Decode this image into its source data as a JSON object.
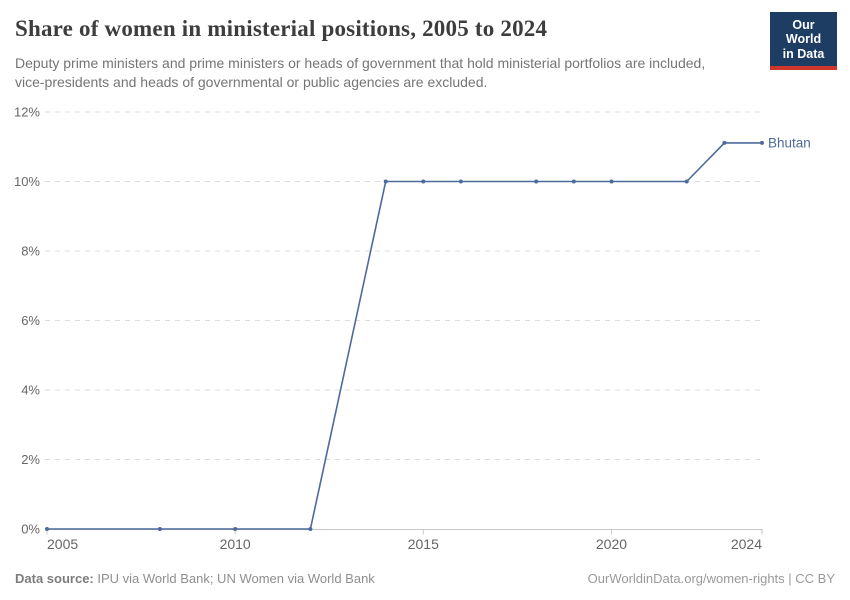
{
  "header": {
    "title": "Share of women in ministerial positions, 2005 to 2024",
    "subtitle": "Deputy prime ministers and prime ministers or heads of government that hold ministerial portfolios are included, vice-presidents and heads of governmental or public agencies are excluded.",
    "logo": {
      "line1": "Our World",
      "line2": "in Data",
      "bg_color": "#1d3d63",
      "accent_color": "#d0352b"
    }
  },
  "chart_data": {
    "type": "line",
    "title": "Share of women in ministerial positions, 2005 to 2024",
    "xlabel": "",
    "ylabel": "",
    "xlim": [
      2005,
      2024
    ],
    "ylim": [
      0,
      12
    ],
    "x_ticks": [
      2005,
      2010,
      2015,
      2020,
      2024
    ],
    "y_ticks": [
      0,
      2,
      4,
      6,
      8,
      10,
      12
    ],
    "y_tick_suffix": "%",
    "grid": "horizontal-dashed",
    "legend_position": "end-of-line",
    "series": [
      {
        "name": "Bhutan",
        "color": "#4c6a9c",
        "points": [
          [
            2005,
            0
          ],
          [
            2008,
            0
          ],
          [
            2010,
            0
          ],
          [
            2012,
            0
          ],
          [
            2014,
            10
          ],
          [
            2015,
            10
          ],
          [
            2016,
            10
          ],
          [
            2018,
            10
          ],
          [
            2019,
            10
          ],
          [
            2020,
            10
          ],
          [
            2022,
            10
          ],
          [
            2023,
            11.11
          ],
          [
            2024,
            11.11
          ]
        ]
      }
    ],
    "colors": {
      "gridline": "#dcdcdc",
      "axis": "#c8c8c8",
      "tick_label": "#666666"
    }
  },
  "footer": {
    "source_label": "Data source:",
    "source_text": " IPU via World Bank; UN Women via World Bank",
    "right_text": "OurWorldinData.org/women-rights | CC BY"
  }
}
